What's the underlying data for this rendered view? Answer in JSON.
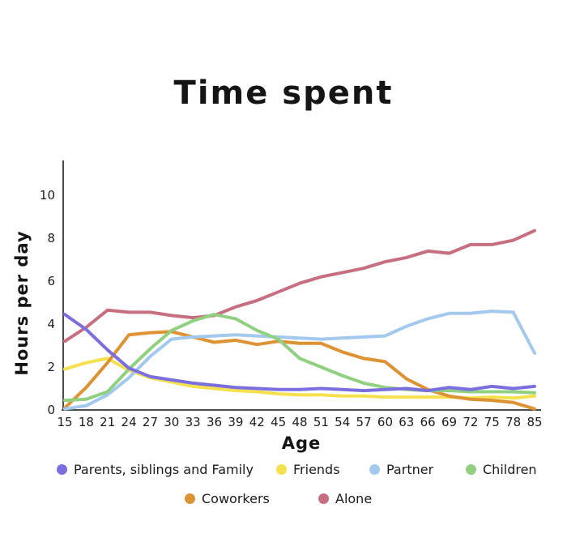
{
  "chart_data": {
    "type": "line",
    "title": "Time spent",
    "xlabel": "Age",
    "ylabel": "Hours per day",
    "x_tick_labels": [
      "15",
      "18",
      "21",
      "24",
      "27",
      "30",
      "33",
      "36",
      "39",
      "42",
      "45",
      "48",
      "51",
      "54",
      "57",
      "60",
      "63",
      "66",
      "69",
      "72",
      "75",
      "78",
      "85"
    ],
    "yticks": [
      0,
      2,
      4,
      6,
      8,
      10
    ],
    "ylim": [
      0,
      10.5
    ],
    "grid": false,
    "legend_position": "bottom",
    "legend_rows": [
      [
        "Parents, siblings and Family",
        "Friends",
        "Partner",
        "Children"
      ],
      [
        "Coworkers",
        "Alone"
      ]
    ],
    "series": [
      {
        "name": "Parents, siblings and Family",
        "color": "#7b6fe0",
        "values": [
          4.45,
          3.75,
          2.8,
          1.95,
          1.55,
          1.4,
          1.25,
          1.15,
          1.05,
          1.0,
          0.95,
          0.95,
          1.0,
          0.95,
          0.9,
          0.95,
          1.0,
          0.9,
          1.05,
          0.95,
          1.1,
          1.0,
          1.1
        ]
      },
      {
        "name": "Friends",
        "color": "#f5e14e",
        "values": [
          1.9,
          2.2,
          2.4,
          1.85,
          1.5,
          1.3,
          1.1,
          1.0,
          0.9,
          0.85,
          0.75,
          0.7,
          0.7,
          0.65,
          0.65,
          0.6,
          0.6,
          0.6,
          0.6,
          0.55,
          0.6,
          0.55,
          0.65
        ]
      },
      {
        "name": "Partner",
        "color": "#a3c9ee",
        "values": [
          0.05,
          0.2,
          0.7,
          1.5,
          2.5,
          3.3,
          3.4,
          3.45,
          3.5,
          3.45,
          3.4,
          3.35,
          3.3,
          3.35,
          3.4,
          3.45,
          3.9,
          4.25,
          4.5,
          4.5,
          4.6,
          4.55,
          2.65
        ]
      },
      {
        "name": "Children",
        "color": "#90d080",
        "values": [
          0.45,
          0.5,
          0.85,
          1.9,
          2.85,
          3.7,
          4.15,
          4.45,
          4.25,
          3.7,
          3.3,
          2.4,
          2.0,
          1.6,
          1.25,
          1.05,
          0.95,
          0.9,
          0.9,
          0.85,
          0.85,
          0.85,
          0.8
        ]
      },
      {
        "name": "Coworkers",
        "color": "#dd9233",
        "values": [
          0.1,
          1.05,
          2.2,
          3.5,
          3.6,
          3.65,
          3.4,
          3.15,
          3.25,
          3.05,
          3.2,
          3.1,
          3.1,
          2.7,
          2.4,
          2.25,
          1.45,
          0.95,
          0.65,
          0.5,
          0.45,
          0.35,
          0.05
        ]
      },
      {
        "name": "Alone",
        "color": "#c76f80",
        "values": [
          3.2,
          3.85,
          4.65,
          4.55,
          4.55,
          4.4,
          4.3,
          4.4,
          4.8,
          5.1,
          5.5,
          5.9,
          6.2,
          6.4,
          6.6,
          6.9,
          7.1,
          7.4,
          7.3,
          7.7,
          7.7,
          7.9,
          8.35
        ]
      }
    ]
  }
}
